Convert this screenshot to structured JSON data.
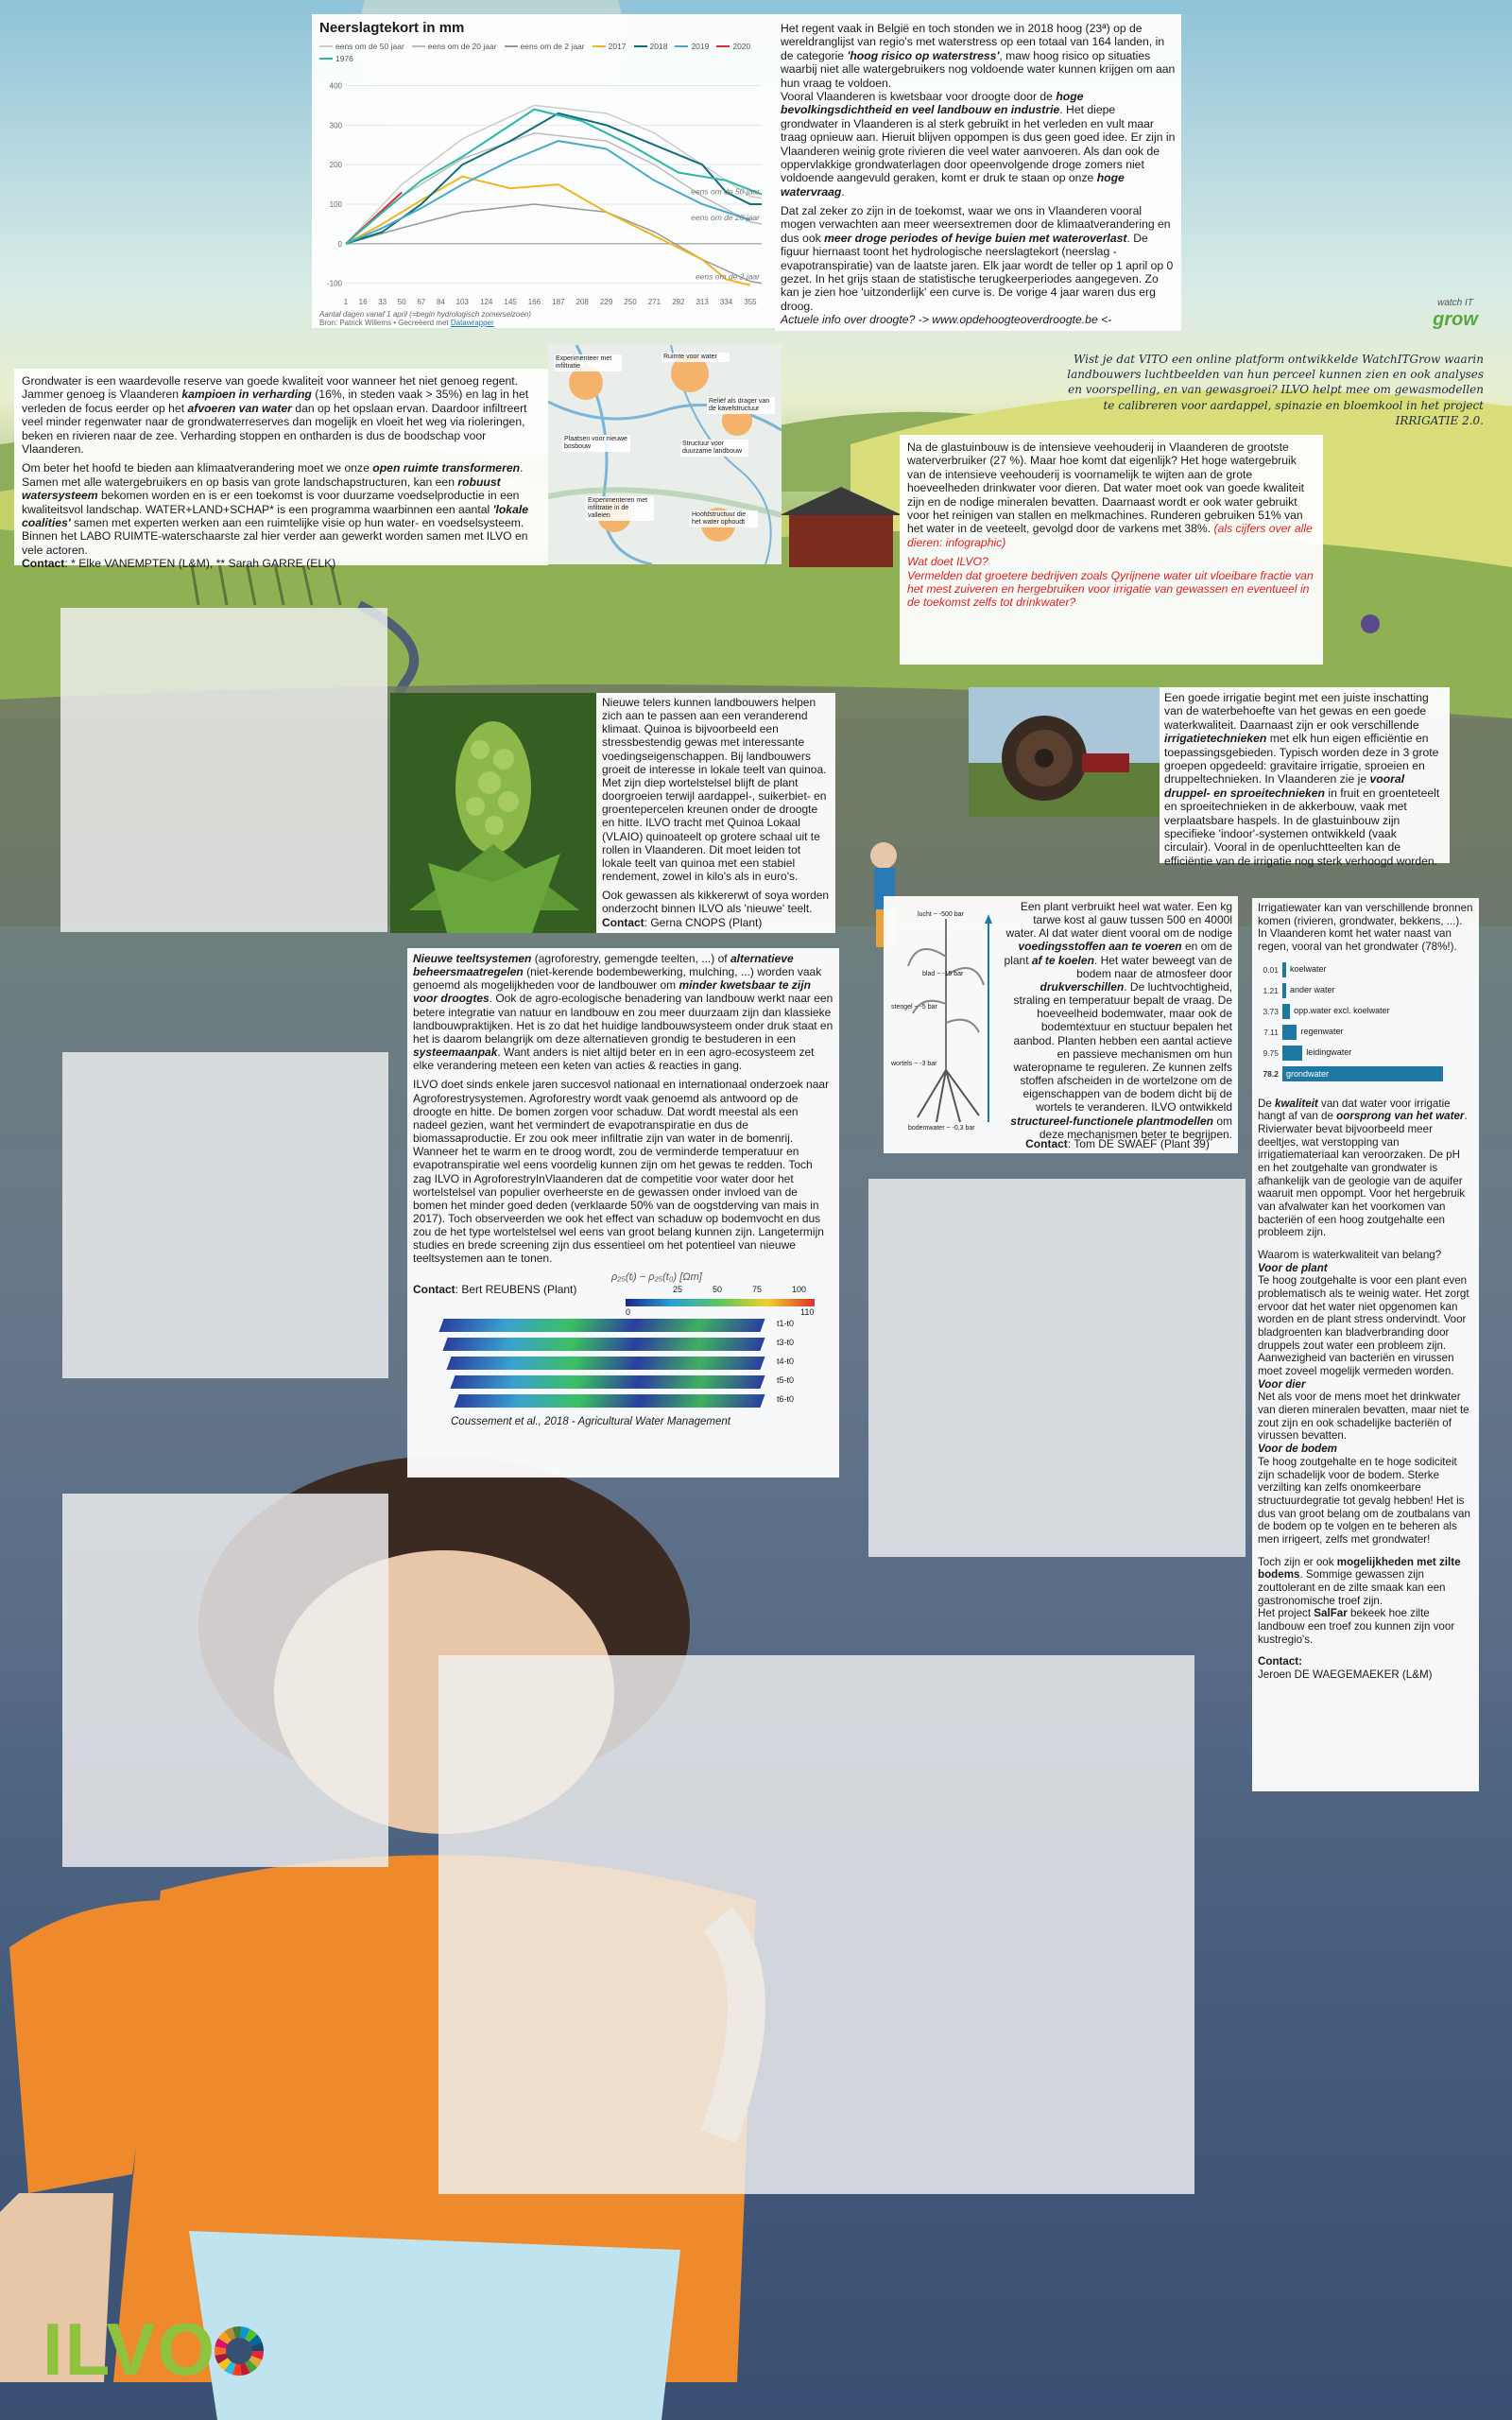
{
  "chart": {
    "title": "Neerslagtekort in mm",
    "legend": [
      {
        "label": "eens om de 50 jaar",
        "color": "#cccccc"
      },
      {
        "label": "eens om de 20 jaar",
        "color": "#bbbbbb"
      },
      {
        "label": "eens om de 2 jaar",
        "color": "#999999"
      },
      {
        "label": "2017",
        "color": "#f0b429"
      },
      {
        "label": "2018",
        "color": "#0f6e7a"
      },
      {
        "label": "2019",
        "color": "#47a9c6"
      },
      {
        "label": "2020",
        "color": "#e02b35"
      },
      {
        "label": "1976",
        "color": "#2fb6a6"
      }
    ],
    "annotations": [
      "eens om de 50 jaar",
      "eens om de 20 jaar",
      "eens om de 2 jaar"
    ],
    "xlabel": "Aantal dagen vanaf 1 april (=begin hydrologisch zomerseizoen)",
    "source_prefix": "Bron: Patrick Willems • Gecreëerd met",
    "source_tool": "Datawrapper"
  },
  "chart_data": {
    "type": "line",
    "x_ticks": [
      1,
      16,
      33,
      50,
      67,
      84,
      103,
      124,
      145,
      166,
      187,
      208,
      229,
      250,
      271,
      292,
      313,
      334,
      355
    ],
    "y_ticks": [
      -100,
      0,
      100,
      200,
      300,
      400
    ],
    "ylim": [
      -120,
      430
    ],
    "series": [
      {
        "name": "eens om de 50 jaar",
        "x": [
          1,
          50,
          103,
          166,
          229,
          271,
          313,
          355,
          365
        ],
        "y": [
          0,
          150,
          265,
          350,
          330,
          280,
          200,
          120,
          115
        ]
      },
      {
        "name": "eens om de 20 jaar",
        "x": [
          1,
          50,
          103,
          166,
          229,
          271,
          313,
          355,
          365
        ],
        "y": [
          0,
          120,
          215,
          280,
          260,
          200,
          120,
          55,
          50
        ]
      },
      {
        "name": "eens om de 2 jaar",
        "x": [
          1,
          50,
          103,
          166,
          229,
          271,
          313,
          355,
          365
        ],
        "y": [
          0,
          40,
          80,
          100,
          80,
          30,
          -40,
          -95,
          -100
        ]
      },
      {
        "name": "2017",
        "x": [
          1,
          33,
          67,
          103,
          145,
          187,
          229,
          271,
          313,
          334,
          355
        ],
        "y": [
          0,
          50,
          110,
          170,
          140,
          150,
          80,
          20,
          -40,
          -90,
          -105
        ]
      },
      {
        "name": "2018",
        "x": [
          1,
          33,
          67,
          103,
          145,
          187,
          229,
          271,
          313,
          334,
          355,
          365
        ],
        "y": [
          0,
          30,
          100,
          200,
          260,
          330,
          300,
          250,
          200,
          130,
          100,
          100
        ]
      },
      {
        "name": "2019",
        "x": [
          1,
          33,
          67,
          103,
          145,
          187,
          229,
          271,
          313,
          355
        ],
        "y": [
          0,
          40,
          90,
          150,
          210,
          260,
          240,
          160,
          100,
          60
        ]
      },
      {
        "name": "2020",
        "x": [
          1,
          16,
          33,
          50
        ],
        "y": [
          0,
          40,
          85,
          130
        ]
      },
      {
        "name": "1976",
        "x": [
          1,
          33,
          67,
          103,
          145,
          166,
          208,
          250,
          292,
          334,
          365
        ],
        "y": [
          0,
          80,
          160,
          220,
          300,
          340,
          310,
          250,
          180,
          160,
          125
        ]
      }
    ]
  },
  "top_text": {
    "p1_a": "Het regent vaak in België en toch stonden we in 2018 hoog (23ª) op de wereldranglijst van regio's met waterstress op een totaal van 164 landen, in de categorie ",
    "p1_b": "'hoog risico op waterstress'",
    "p1_c": ", maw hoog risico op situaties waarbij niet alle watergebruikers nog voldoende water kunnen krijgen om aan hun vraag te voldoen.",
    "p2_a": "Vooral Vlaanderen is kwetsbaar voor droogte door de ",
    "p2_b": "hoge bevolkingsdichtheid en veel landbouw en industrie",
    "p2_c": ". Het diepe grondwater in Vlaanderen is al sterk gebruikt in het verleden en vult maar traag opnieuw aan. Hieruit blijven oppompen is dus geen goed idee. Er zijn in Vlaanderen weinig grote rivieren die veel water aanvoeren. Als dan ook de oppervlakkige grondwaterlagen door opeenvolgende droge zomers niet voldoende aangevuld geraken, komt er druk te staan op onze ",
    "p2_d": "hoge watervraag",
    "p2_e": ".",
    "p3_a": "Dat zal zeker zo zijn in de toekomst, waar we ons in Vlaanderen vooral mogen verwachten aan meer weersextremen door de klimaatverandering en dus ook ",
    "p3_b": "meer droge periodes of hevige buien met wateroverlast",
    "p3_c": ". De figuur hiernaast toont het hydrologische neerslagtekort (neerslag - evapotranspiratie) van de laatste jaren. Elk jaar wordt de teller op 1 april op 0 gezet. In het grijs staan de statistische terugkeerperiodes aangegeven. Zo kan je zien hoe 'uitzonderlijk' een curve is. De vorige 4 jaar waren dus erg droog.",
    "p4": "Actuele info over droogte? -> www.opdehoogteoverdroogte.be <-"
  },
  "watchitgrow": {
    "logo_top": "watch IT",
    "logo_bottom": "grow",
    "text": "Wist je dat VITO een online platform ontwikkelde WatchITGrow waarin landbouwers luchtbeelden van hun perceel kunnen zien en ook analyses en voorspelling, en van gewasgroei? ILVO helpt mee om gewasmodellen te calibreren voor aardappel, spinazie en bloemkool in het project IRRIGATIE 2.0."
  },
  "groundwater": {
    "p1_a": "Grondwater is een waardevolle reserve van goede kwaliteit voor wanneer het niet genoeg regent. Jammer genoeg is Vlaanderen ",
    "p1_b": "kampioen in verharding",
    "p1_c": " (16%, in steden vaak > 35%) en lag in het verleden de focus eerder op het ",
    "p1_d": "afvoeren van water",
    "p1_e": " dan op het opslaan ervan. Daardoor infiltreert veel minder regenwater naar de grondwaterreserves dan mogelijk en vloeit het weg via rioleringen, beken en rivieren naar de zee. Verharding stoppen en ontharden is dus de boodschap voor Vlaanderen.",
    "p2_a": "Om beter het hoofd te bieden aan klimaatverandering moet we onze ",
    "p2_b": "open ruimte transformeren",
    "p2_c": ". Samen met alle watergebruikers en op basis van grote landschapstructuren, kan een ",
    "p2_d": "robuust watersysteem",
    "p2_e": " bekomen worden en is er een toekomst is voor duurzame voedselproductie in een kwaliteitsvol landschap. WATER+LAND+SCHAP* is een programma waarbinnen een aantal ",
    "p2_f": "'lokale coalities'",
    "p2_g": " samen met experten werken aan een ruimtelijke visie op hun water- en voedselsysteem. Binnen het LABO RUIMTE-waterschaarste zal hier verder aan gewerkt worden samen met ILVO en vele actoren.",
    "contact_label": "Contact",
    "contact": ": * Elke VANEMPTEN (L&M), ** Sarah GARRE (ELK)"
  },
  "map_labels": [
    "Experimenteer met infiltratie",
    "Ruimte voor water",
    "Reliëf als drager van de kavelstructuur",
    "Structuur voor duurzame landbouw",
    "Plaatsen voor nieuwe bosbouw",
    "Experimenteren met infiltratie in de valleien",
    "Hoofdstructuur die het water ophoudt"
  ],
  "livestock": {
    "p1": "Na de glastuinbouw is de intensieve veehouderij in Vlaanderen de grootste waterverbruiker (27 %). Maar hoe komt dat eigenlijk? Het hoge watergebruik van de intensieve veehouderij is voornamelijk te wijten aan de grote hoeveelheden drinkwater voor dieren. Dat water moet ook van goede kwaliteit zijn en de nodige mineralen bevatten. Daarnaast wordt er ook water gebruikt voor het reinigen van stallen en melkmachines. Runderen gebruiken 51% van het water in de veeteelt, gevolgd door de varkens met 38%. ",
    "p1_red": "(als cijfers over alle dieren: infographic)",
    "p2_red": "Wat doet ILVO?\nVermelden dat groetere bedrijven zoals Qyrijnene water uit vloeibare fractie van het mest zuiveren en hergebruiken voor irrigatie van gewassen en eventueel in de toekomst zelfs tot drinkwater?"
  },
  "quinoa": {
    "p1": "Nieuwe telers kunnen landbouwers helpen zich aan te passen aan een veranderend klimaat. Quinoa is bijvoorbeeld een stressbestendig gewas met interessante voedingseigenschappen. Bij landbouwers groeit de interesse in lokale teelt van quinoa. Met zijn diep wortelstelsel blijft de plant doorgroeien terwijl aardappel-, suikerbiet- en groentepercelen kreunen onder de droogte en hitte. ILVO tracht met Quinoa Lokaal (VLAIO) quinoateelt op grotere schaal uit te rollen in Vlaanderen. Dit moet leiden tot lokale teelt van quinoa met een stabiel rendement, zowel in kilo's als in euro's.",
    "p2": "Ook gewassen als kikkererwt of soya worden onderzocht binnen ILVO als 'nieuwe' teelt.",
    "contact_label": "Contact",
    "contact": ": Gerna CNOPS (Plant)"
  },
  "irrigation": {
    "p1_a": "Een goede irrigatie begint met een juiste inschatting van de waterbehoefte van het gewas en een goede waterkwaliteit. Daarnaast zijn er ook verschillende ",
    "p1_b": "irrigatietechnieken",
    "p1_c": " met elk hun eigen efficiëntie en toepassingsgebieden. Typisch worden deze in 3 grote groepen opgedeeld: gravitaire irrigatie, sproeien en druppeltechnieken. In Vlaanderen  zie je ",
    "p1_d": "vooral druppel- en sproeitechnieken",
    "p1_e": " in fruit en groenteteelt en sproeitechnieken in de akkerbouw, vaak met verplaatsbare haspels. In de glastuinbouw zijn specifieke 'indoor'-systemen ontwikkeld (vaak circulair). Vooral in de openluchtteelten kan de efficiëntie van de irrigatie nog sterk verhoogd worden."
  },
  "plant_water": {
    "diagram_labels": [
      "lucht ~ -500 bar",
      "blad ~ -15 bar",
      "stengel ~ -5 bar",
      "wortels ~ -3 bar",
      "bodemwater ~ -0,3 bar"
    ],
    "p1_a": "Een plant verbruikt heel wat water. Een kg tarwe kost al gauw tussen 500 en 4000l water. Al dat water dient vooral om de nodige ",
    "p1_b": "voedingsstoffen aan te voeren",
    "p1_c": " en om de plant ",
    "p1_d": "af te koelen",
    "p1_e": ". Het water beweegt van de bodem naar de atmosfeer door ",
    "p1_f": "drukverschillen",
    "p1_g": ". De luchtvochtigheid, straling en temperatuur bepalt de vraag. De hoeveelheid bodemwater, maar ook de bodemtextuur en stuctuur bepalen het aanbod. Planten hebben een aantal actieve en passieve mechanismen om hun wateropname te reguleren. Ze kunnen zelfs stoffen afscheiden in de wortelzone om de eigenschappen van de bodem dicht bij de wortels te veranderen. ILVO ontwikkeld ",
    "p1_h": "structureel-functionele plantmodellen",
    "p1_i": " om deze mechanismen beter te begrijpen.",
    "contact_label": "Contact",
    "contact": ": Tom DE SWAEF (Plant 39)"
  },
  "water_quality": {
    "intro": "Irrigatiewater kan van verschillende bronnen komen (rivieren, grondwater, bekkens, ...). In Vlaanderen komt het water naast van regen, vooral van het grondwater (78%!).",
    "bars": [
      {
        "value": "0.01",
        "label": "koelwater",
        "pct": 0.01
      },
      {
        "value": "1.21",
        "label": "ander water",
        "pct": 1.21
      },
      {
        "value": "3.73",
        "label": "opp.water excl. koelwater",
        "pct": 3.73
      },
      {
        "value": "7.11",
        "label": "regenwater",
        "pct": 7.11
      },
      {
        "value": "9.75",
        "label": "leidingwater",
        "pct": 9.75
      },
      {
        "value": "78.2",
        "label": "grondwater",
        "pct": 78.2
      }
    ],
    "p1_a": "De ",
    "p1_b": "kwaliteit",
    "p1_c": " van dat water voor irrigatie hangt af van de ",
    "p1_d": "oorsprong van het water",
    "p1_e": ". Rivierwater bevat bijvoorbeeld meer deeltjes, wat verstopping van irrigatiemateriaal kan veroorzaken. De pH en het zoutgehalte van grondwater is afhankelijk van de geologie van de aquifer waaruit men oppompt. Voor het hergebruik van afvalwater kan het voorkomen van bacteriën of een hoog zoutgehalte een probleem zijn.",
    "q": "Waarom is waterkwaliteit van belang?",
    "h_plant": "Voor de plant",
    "t_plant": "Te hoog zoutgehalte is voor een plant even problematisch als te weinig water. Het zorgt ervoor dat het water niet opgenomen kan worden en de plant stress ondervindt. Voor bladgroenten kan bladverbranding door druppels zout water een probleem zijn. Aanwezigheid van bacteriën en virussen moet zoveel mogelijk vermeden worden.",
    "h_dier": "Voor dier",
    "t_dier": "Net als voor de mens moet het drinkwater van dieren mineralen bevatten, maar niet te zout zijn en ook schadelijke bacteriën of virussen bevatten.",
    "h_bodem": "Voor de bodem",
    "t_bodem": "Te hoog zoutgehalte en te hoge sodiciteit zijn schadelijk voor de bodem. Sterke verzilting kan zelfs onomkeerbare structuurdegratie tot gevalg hebben! Het is dus van groot belang om de zoutbalans van de bodem op te volgen en te beheren als men irrigeert, zelfs met grondwater!",
    "p_salt_a": "Toch zijn er ook ",
    "p_salt_b": "mogelijkheden met zilte bodems",
    "p_salt_c": ". Sommige gewassen zijn zouttolerant en de zilte smaak kan een gastronomische troef zijn.",
    "p_salt_d": "Het project ",
    "p_salt_e": "SalFar",
    "p_salt_f": " bekeek hoe zilte landbouw een troef zou kunnen zijn voor kustregio's.",
    "contact_label": "Contact:",
    "contact": "Jeroen DE WAEGEMAEKER (L&M)"
  },
  "teelt": {
    "p1_a": "Nieuwe teeltsystemen",
    "p1_b": " (agroforestry, gemengde teelten, ...) of ",
    "p1_c": "alternatieve beheersmaatregelen",
    "p1_d": " (niet-kerende bodembewerking, mulching, ...) worden vaak genoemd als mogelijkheden voor de landbouwer om ",
    "p1_e": "minder kwetsbaar te zijn voor droogtes",
    "p1_f": ". Ook de agro-ecologische benadering van landbouw werkt naar een betere integratie van natuur en landbouw en zou meer duurzaam zijn dan klassieke landbouwpraktijken. Het is zo dat het huidige landbouwsysteem onder druk staat en het is daarom belangrijk om deze alternatieven grondig te bestuderen in een ",
    "p1_g": "systeemaanpak",
    "p1_h": ". Want anders is niet altijd beter en in een agro-ecosysteem zet elke verandering meteen een keten van acties & reacties in gang.",
    "p2": "ILVO doet sinds enkele jaren succesvol nationaal en internationaal onderzoek naar Agroforestrysystemen. Agroforestry wordt vaak genoemd als antwoord op de droogte en hitte. De bomen zorgen voor schaduw. Dat wordt meestal als een nadeel gezien, want het vermindert de evapotranspiratie en dus de biomassaproductie.  Er zou ook meer infiltratie zijn van water in de bomenrij. Wanneer het te warm en te droog wordt, zou de verminderde temperatuur en evapotranspiratie wel eens voordelig kunnen zijn om het gewas te redden. Toch zag ILVO in AgroforestryInVlaanderen dat de competitie voor water door het wortelstelsel van populier overheerste en de gewassen onder invloed van de bomen het minder goed deden (verklaarde 50% van de oogstderving van mais in 2017). Toch observeerden we ook het effect van schaduw op bodemvocht en dus zou de het type wortelstelsel wel eens van groot belang kunnen zijn.  Langetermijn studies en brede screening zijn dus essentieel om het potentieel van nieuwe teeltsystemen aan te tonen.",
    "formula": "ρ₂₅(tᵢ) − ρ₂₅(t₀) [Ωm]",
    "scale": [
      "25",
      "50",
      "75",
      "100"
    ],
    "scale2": [
      "0",
      "110"
    ],
    "slice_labels": [
      "t1-t0",
      "t3-t0",
      "t4-t0",
      "t5-t0",
      "t6-t0"
    ],
    "contact_label": "Contact",
    "contact": ": Bert REUBENS (Plant)",
    "citation": "Coussement et al., 2018 - Agricultural Water Management"
  },
  "logo": {
    "text": "ILVO"
  },
  "colors": {
    "accent": "#1f77a3",
    "red": "#e02020",
    "ilvo_green": "#8fc23e",
    "shirt": "#ef8a2c"
  }
}
